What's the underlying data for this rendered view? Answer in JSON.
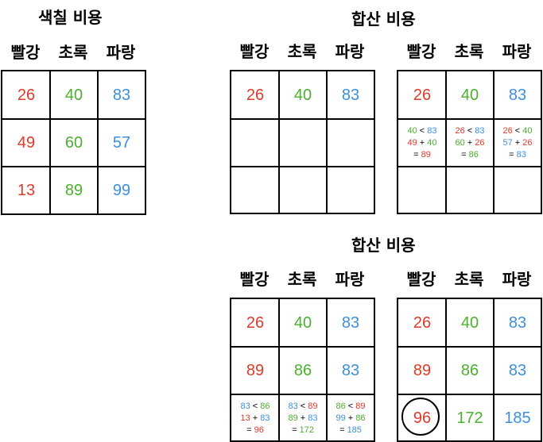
{
  "titles": {
    "paint_cost": "색칠 비용",
    "cumulative_cost_top": "합산 비용",
    "cumulative_cost_bottom": "합산 비용"
  },
  "headers": {
    "red": "빨강",
    "green": "초록",
    "blue": "파랑"
  },
  "colors": {
    "red": "#e03a2a",
    "green": "#4caf2f",
    "blue": "#3d8fe0"
  },
  "paint_cost": [
    [
      "26",
      "40",
      "83"
    ],
    [
      "49",
      "60",
      "57"
    ],
    [
      "13",
      "89",
      "99"
    ]
  ],
  "top_left_grid": [
    [
      "26",
      "40",
      "83"
    ]
  ],
  "top_right_grid": {
    "row0": [
      "26",
      "40",
      "83"
    ],
    "row1": [
      {
        "cmp_a": "40",
        "lt": "<",
        "cmp_b": "83",
        "add_a": "49",
        "plus": "+",
        "add_b": "40",
        "eq": "=",
        "result": "89"
      },
      {
        "cmp_a": "26",
        "lt": "<",
        "cmp_b": "83",
        "add_a": "60",
        "plus": "+",
        "add_b": "26",
        "eq": "=",
        "result": "86"
      },
      {
        "cmp_a": "26",
        "lt": "<",
        "cmp_b": "40",
        "add_a": "57",
        "plus": "+",
        "add_b": "26",
        "eq": "=",
        "result": "83"
      }
    ]
  },
  "bottom_left_grid": {
    "row0": [
      "26",
      "40",
      "83"
    ],
    "row1": [
      "89",
      "86",
      "83"
    ],
    "row2": [
      {
        "cmp_a": "83",
        "lt": "<",
        "cmp_b": "86",
        "add_a": "13",
        "plus": "+",
        "add_b": "83",
        "eq": "=",
        "result": "96"
      },
      {
        "cmp_a": "83",
        "lt": "<",
        "cmp_b": "89",
        "add_a": "89",
        "plus": "+",
        "add_b": "83",
        "eq": "=",
        "result": "172"
      },
      {
        "cmp_a": "86",
        "lt": "<",
        "cmp_b": "89",
        "add_a": "99",
        "plus": "+",
        "add_b": "86",
        "eq": "=",
        "result": "185"
      }
    ]
  },
  "bottom_right_grid": {
    "row0": [
      "26",
      "40",
      "83"
    ],
    "row1": [
      "89",
      "86",
      "83"
    ],
    "row2": [
      "96",
      "172",
      "185"
    ]
  }
}
